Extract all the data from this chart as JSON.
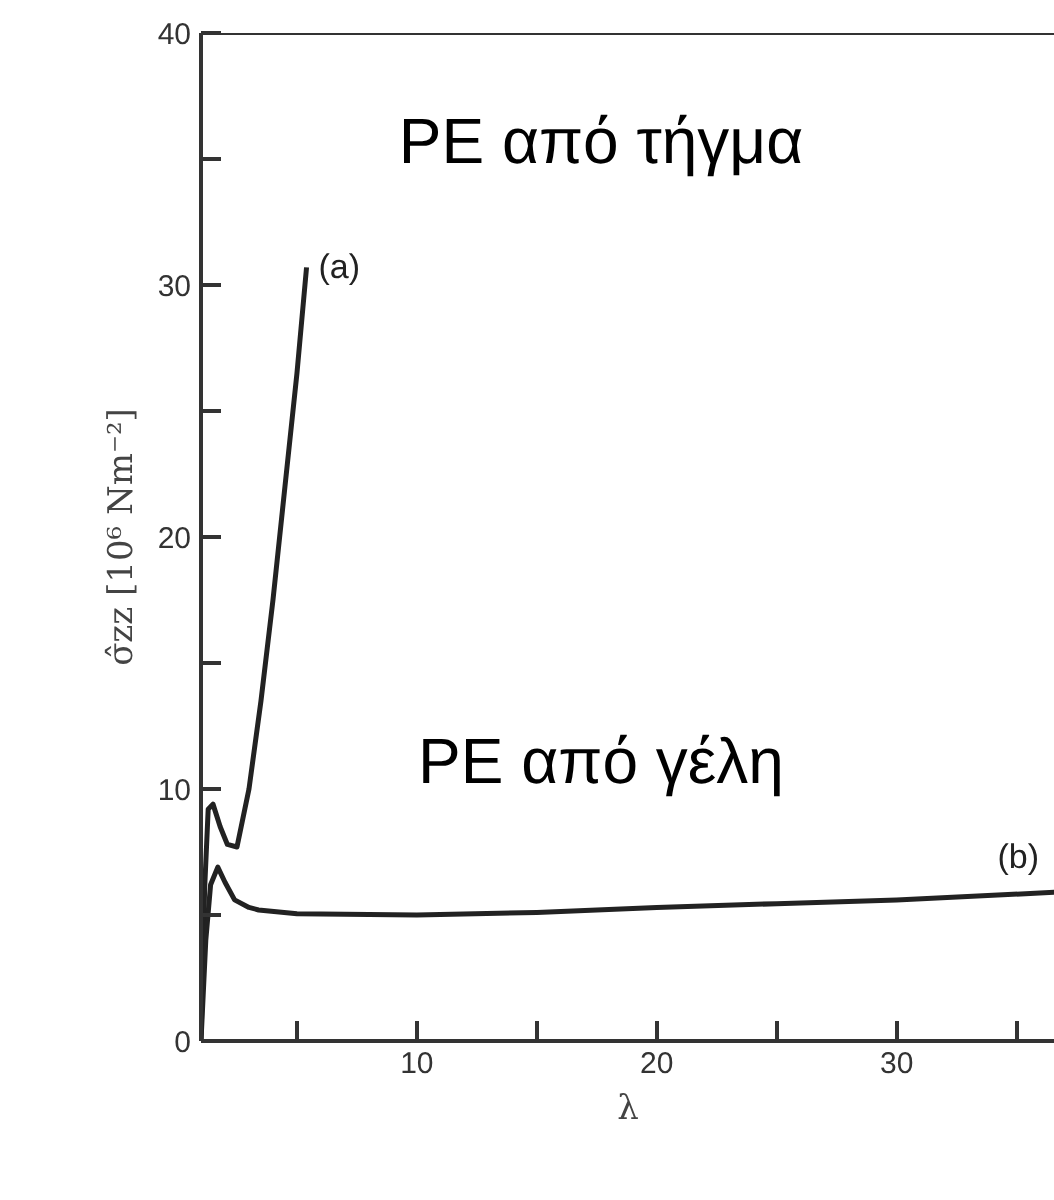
{
  "chart_data": {
    "type": "line",
    "xlabel": "λ",
    "ylabel": "σ̂zz [10⁶ Nm⁻²]",
    "xlim": [
      1,
      36.6
    ],
    "ylim": [
      0,
      40
    ],
    "xticks": [
      {
        "value": 5,
        "label": null
      },
      10,
      {
        "value": 15,
        "label": null
      },
      20,
      {
        "value": 25,
        "label": null
      },
      30,
      {
        "value": 35,
        "label": null
      }
    ],
    "yticks": [
      0,
      {
        "value": 5,
        "label": null
      },
      10,
      {
        "value": 15,
        "label": null
      },
      20,
      {
        "value": 25,
        "label": null
      },
      30,
      {
        "value": 35,
        "label": null
      },
      40
    ],
    "grid": false,
    "legend": false,
    "marker": "none",
    "line_style": "solid",
    "series": [
      {
        "name": "(a)",
        "color": "#222222",
        "x": [
          1,
          1.15,
          1.3,
          1.5,
          1.8,
          2.1,
          2.5,
          3.0,
          3.5,
          4.0,
          4.5,
          5.0,
          5.4
        ],
        "values": [
          0,
          6,
          9.2,
          9.4,
          8.5,
          7.8,
          7.7,
          10,
          13.5,
          17.5,
          22,
          26.5,
          30.7
        ]
      },
      {
        "name": "(b)",
        "color": "#222222",
        "x": [
          1,
          1.2,
          1.4,
          1.7,
          2.0,
          2.4,
          3.0,
          3.4,
          5,
          10,
          15,
          20,
          25,
          30,
          36.6
        ],
        "values": [
          0,
          4,
          6.2,
          6.9,
          6.3,
          5.6,
          5.3,
          5.2,
          5.05,
          5.0,
          5.1,
          5.3,
          5.45,
          5.6,
          5.9
        ]
      }
    ],
    "annotations": [
      "PE από τήγμα",
      "PE από γέλη"
    ]
  }
}
